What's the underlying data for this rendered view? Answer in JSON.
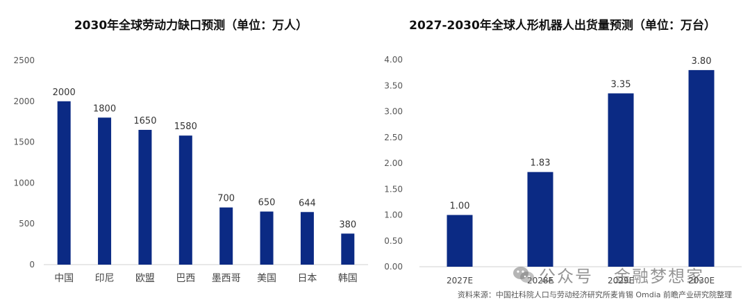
{
  "chart_data": [
    {
      "type": "bar",
      "title": "2030年全球劳动力缺口预测（单位：万人）",
      "categories": [
        "中国",
        "印尼",
        "欧盟",
        "巴西",
        "墨西哥",
        "美国",
        "日本",
        "韩国"
      ],
      "values": [
        2000,
        1800,
        1650,
        1580,
        700,
        650,
        644,
        380
      ],
      "value_labels": [
        "2000",
        "1800",
        "1650",
        "1580",
        "700",
        "650",
        "644",
        "380"
      ],
      "ylim": [
        0,
        2500
      ],
      "yticks": [
        "0",
        "500",
        "1000",
        "1500",
        "2000",
        "2500"
      ],
      "grid": false,
      "bar_color": "#0b2a84"
    },
    {
      "type": "bar",
      "title": "2027-2030年全球人形机器人出货量预测（单位：万台）",
      "categories": [
        "2027E",
        "2028E",
        "2029E",
        "2030E"
      ],
      "values": [
        1.0,
        1.83,
        3.35,
        3.8
      ],
      "value_labels": [
        "1.00",
        "1.83",
        "3.35",
        "3.80"
      ],
      "ylim": [
        0,
        4
      ],
      "yticks": [
        "0.00",
        "0.50",
        "1.00",
        "1.50",
        "2.00",
        "2.50",
        "3.00",
        "3.50",
        "4.00"
      ],
      "grid": false,
      "bar_color": "#0b2a84"
    }
  ],
  "wechat": {
    "label": "公众号",
    "name": "金融梦想家",
    "icon": "wechat-icon"
  },
  "source": "资料来源：中国社科院人口与劳动经济研究所麦肯锡 Omdia 前瞻产业研究院整理"
}
